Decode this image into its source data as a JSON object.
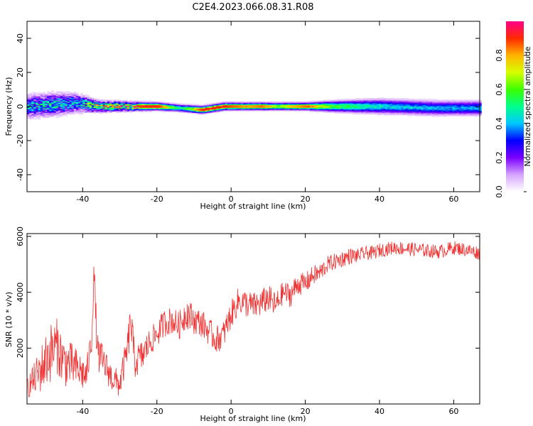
{
  "figure": {
    "title": "C2E4.2023.066.08.31.R08"
  },
  "chart_data": [
    {
      "type": "heatmap",
      "title": "C2E4.2023.066.08.31.R08",
      "xlabel": "Height of straight line (km)",
      "ylabel": "Frequency (Hz)",
      "xlim": [
        -55,
        67
      ],
      "ylim": [
        -50,
        50
      ],
      "xticks": [
        -40,
        -20,
        0,
        20,
        40,
        60
      ],
      "yticks": [
        -40,
        -20,
        0,
        20,
        40
      ],
      "colorbar": {
        "label": "Normalized spectral amplitude",
        "range": [
          0,
          1
        ],
        "ticks": [
          0.0,
          0.2,
          0.4,
          0.6,
          0.8
        ],
        "colormap": [
          "#ffffff",
          "#d6a4ff",
          "#7a00ff",
          "#0000ff",
          "#00c8ff",
          "#00ff8c",
          "#3cff00",
          "#d8ff00",
          "#ffb300",
          "#ff2a00",
          "#ff0088"
        ]
      },
      "ridge": {
        "description_points": [
          {
            "x": -55,
            "center": 0,
            "halfwidth": 6,
            "peak": 0.45
          },
          {
            "x": -48,
            "center": 1,
            "halfwidth": 6,
            "peak": 0.5
          },
          {
            "x": -42,
            "center": 2,
            "halfwidth": 5,
            "peak": 0.45
          },
          {
            "x": -36,
            "center": 0,
            "halfwidth": 3,
            "peak": 0.7
          },
          {
            "x": -30,
            "center": 0,
            "halfwidth": 2.5,
            "peak": 0.85
          },
          {
            "x": -20,
            "center": 0,
            "halfwidth": 2,
            "peak": 0.92
          },
          {
            "x": -14,
            "center": -1,
            "halfwidth": 2,
            "peak": 0.5
          },
          {
            "x": -8,
            "center": -2,
            "halfwidth": 2,
            "peak": 0.9
          },
          {
            "x": -2,
            "center": 0,
            "halfwidth": 2,
            "peak": 0.9
          },
          {
            "x": 4,
            "center": 0,
            "halfwidth": 2,
            "peak": 0.8
          },
          {
            "x": 8,
            "center": 0,
            "halfwidth": 2,
            "peak": 0.85
          },
          {
            "x": 12,
            "center": 0,
            "halfwidth": 2,
            "peak": 0.7
          },
          {
            "x": 20,
            "center": 0,
            "halfwidth": 2,
            "peak": 0.85
          },
          {
            "x": 28,
            "center": 0,
            "halfwidth": 3,
            "peak": 0.6
          },
          {
            "x": 40,
            "center": 0,
            "halfwidth": 4,
            "peak": 0.45
          },
          {
            "x": 55,
            "center": -1,
            "halfwidth": 4,
            "peak": 0.4
          },
          {
            "x": 67,
            "center": -1,
            "halfwidth": 4,
            "peak": 0.4
          }
        ]
      }
    },
    {
      "type": "line",
      "xlabel": "Height of straight line (km)",
      "ylabel": "SNR (10 * v/v)",
      "xlim": [
        -55,
        67
      ],
      "ylim": [
        0,
        6100
      ],
      "xticks": [
        -40,
        -20,
        0,
        20,
        40,
        60
      ],
      "yticks": [
        2000,
        4000,
        6000
      ],
      "color": "#ee3333",
      "series": [
        {
          "x": [
            -55,
            -53,
            -51,
            -49,
            -47,
            -45,
            -43,
            -41,
            -39,
            -37.5,
            -37,
            -36,
            -34,
            -32,
            -30,
            -28,
            -27,
            -26,
            -24,
            -22,
            -20,
            -18,
            -16,
            -14,
            -12,
            -10,
            -8,
            -6,
            -4,
            -2,
            0,
            2,
            4,
            6,
            8,
            10,
            12,
            14,
            16,
            18,
            20,
            22,
            24,
            26,
            28,
            30,
            32,
            34,
            36,
            38,
            40,
            44,
            48,
            52,
            56,
            60,
            64,
            67
          ],
          "y": [
            600,
            900,
            1300,
            1800,
            2100,
            1500,
            1400,
            1200,
            1000,
            2400,
            4800,
            1800,
            1400,
            900,
            700,
            1900,
            3000,
            1500,
            1700,
            2200,
            2500,
            2900,
            3000,
            2800,
            3300,
            3000,
            2900,
            2600,
            2300,
            2500,
            3200,
            3700,
            3600,
            3500,
            3600,
            3800,
            3500,
            4000,
            3900,
            4300,
            4300,
            4600,
            4700,
            5000,
            5100,
            5200,
            5300,
            5300,
            5400,
            5400,
            5500,
            5600,
            5550,
            5500,
            5450,
            5600,
            5500,
            5400
          ],
          "noise": [
            400,
            600,
            900,
            1100,
            1000,
            900,
            800,
            700,
            600,
            500,
            600,
            700,
            600,
            500,
            500,
            600,
            800,
            600,
            600,
            500,
            500,
            500,
            500,
            500,
            600,
            500,
            500,
            500,
            500,
            500,
            500,
            500,
            500,
            500,
            500,
            500,
            500,
            400,
            450,
            400,
            400,
            350,
            350,
            300,
            300,
            300,
            300,
            250,
            250,
            250,
            250,
            250,
            250,
            250,
            250,
            250,
            250,
            250
          ]
        }
      ]
    }
  ]
}
